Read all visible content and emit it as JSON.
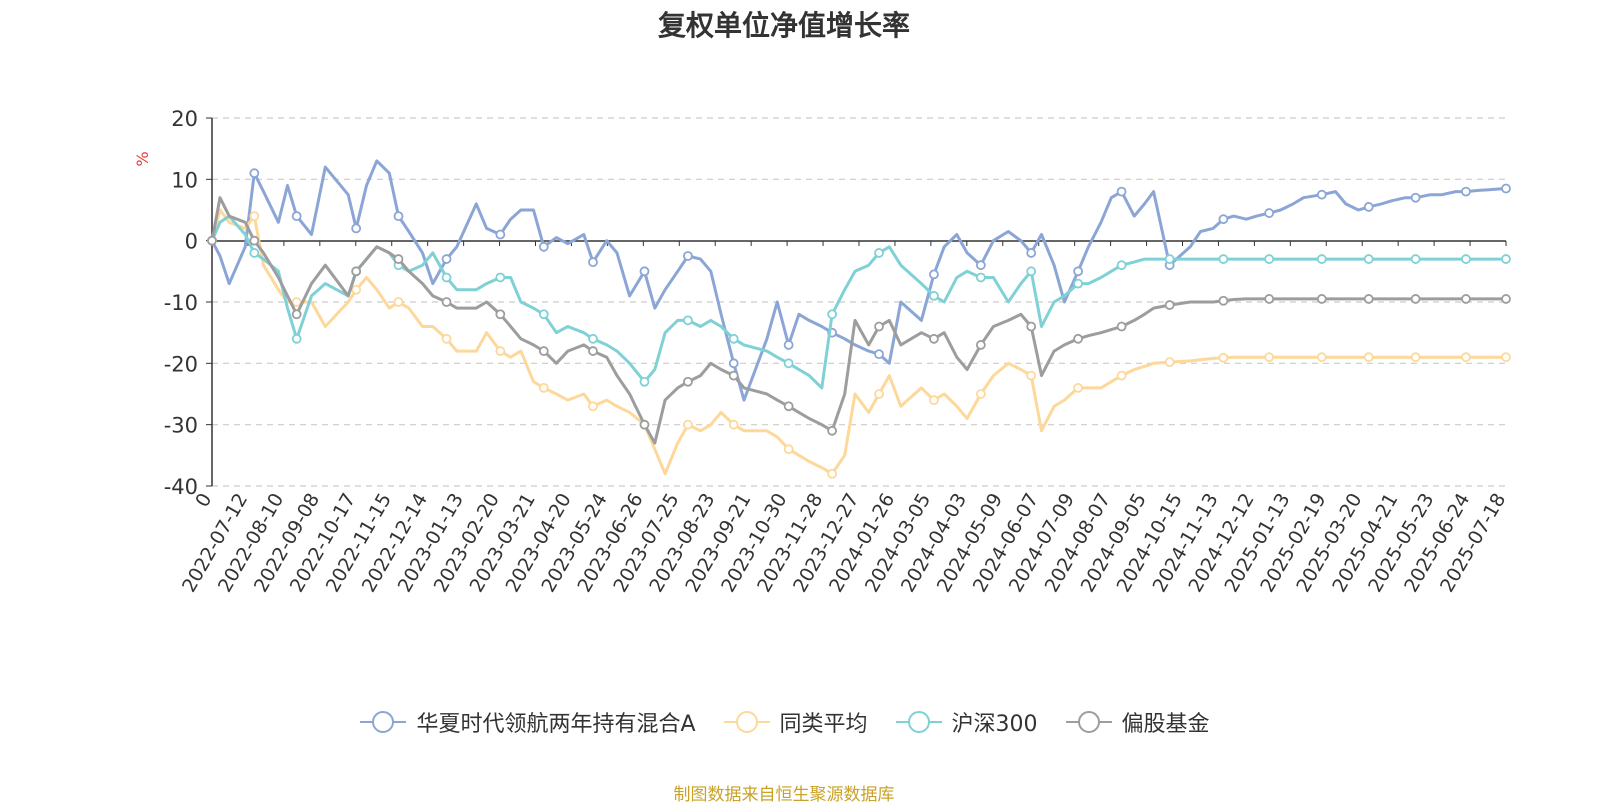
{
  "colors": {
    "fund": "#8ba6d6",
    "peer_avg": "#fdd89a",
    "hs300": "#7fd1d6",
    "equity_fund": "#9d9d9d",
    "axis": "#333333",
    "grid": "#cccccc",
    "unit": "#e83a3a",
    "source": "#c9a227"
  },
  "source_note": "制图数据来自恒生聚源数据库",
  "chart_data": {
    "type": "line",
    "title": "复权单位净值增长率",
    "ylabel": "%",
    "ylim": [
      -40,
      20
    ],
    "yticks": [
      20,
      10,
      0,
      -10,
      -20,
      -30,
      -40
    ],
    "grid": "horizontal dashed",
    "legend_position": "bottom-center",
    "x_tick_labels": [
      "0",
      "2022-07-12",
      "2022-08-10",
      "2022-09-08",
      "2022-10-17",
      "2022-11-15",
      "2022-12-14",
      "2023-01-13",
      "2023-02-20",
      "2023-03-21",
      "2023-04-20",
      "2023-05-24",
      "2023-06-26",
      "2023-07-25",
      "2023-08-23",
      "2023-09-21",
      "2023-10-30",
      "2023-11-28",
      "2023-12-27",
      "2024-01-26",
      "2024-03-05",
      "2024-04-03",
      "2024-05-09",
      "2024-06-07",
      "2024-07-09",
      "2024-08-07",
      "2024-09-05",
      "2024-10-15",
      "2024-11-13",
      "2024-12-12",
      "2025-01-13",
      "2025-02-19",
      "2025-03-20",
      "2025-04-21",
      "2025-05-23",
      "2025-06-24",
      "2025-07-18"
    ],
    "x": [
      "2022-06-13",
      "2022-06-20",
      "2022-06-28",
      "2022-07-12",
      "2022-07-20",
      "2022-07-28",
      "2022-08-10",
      "2022-08-18",
      "2022-08-26",
      "2022-09-08",
      "2022-09-20",
      "2022-10-10",
      "2022-10-17",
      "2022-10-26",
      "2022-11-04",
      "2022-11-15",
      "2022-11-23",
      "2022-12-02",
      "2022-12-14",
      "2022-12-23",
      "2023-01-04",
      "2023-01-13",
      "2023-01-30",
      "2023-02-08",
      "2023-02-20",
      "2023-03-01",
      "2023-03-10",
      "2023-03-21",
      "2023-03-30",
      "2023-04-10",
      "2023-04-20",
      "2023-05-04",
      "2023-05-12",
      "2023-05-24",
      "2023-06-02",
      "2023-06-13",
      "2023-06-26",
      "2023-07-05",
      "2023-07-14",
      "2023-07-25",
      "2023-08-03",
      "2023-08-14",
      "2023-08-23",
      "2023-09-01",
      "2023-09-12",
      "2023-09-21",
      "2023-10-11",
      "2023-10-20",
      "2023-10-30",
      "2023-11-08",
      "2023-11-17",
      "2023-11-28",
      "2023-12-07",
      "2023-12-18",
      "2023-12-27",
      "2024-01-08",
      "2024-01-17",
      "2024-01-26",
      "2024-02-05",
      "2024-02-23",
      "2024-03-05",
      "2024-03-14",
      "2024-03-25",
      "2024-04-03",
      "2024-04-15",
      "2024-04-26",
      "2024-05-09",
      "2024-05-20",
      "2024-05-29",
      "2024-06-07",
      "2024-06-18",
      "2024-06-27",
      "2024-07-09",
      "2024-07-18",
      "2024-07-29",
      "2024-08-07",
      "2024-08-16",
      "2024-08-27",
      "2024-09-05",
      "2024-09-13",
      "2024-09-27",
      "2024-10-15",
      "2024-10-24",
      "2024-11-04",
      "2024-11-13",
      "2024-11-22",
      "2024-12-03",
      "2024-12-12",
      "2024-12-23",
      "2025-01-02",
      "2025-01-13",
      "2025-01-22",
      "2025-02-07",
      "2025-02-19",
      "2025-02-28",
      "2025-03-11",
      "2025-03-20",
      "2025-03-31",
      "2025-04-09",
      "2025-04-21",
      "2025-04-30",
      "2025-05-13",
      "2025-05-23",
      "2025-06-04",
      "2025-06-13",
      "2025-06-24",
      "2025-07-03",
      "2025-07-10",
      "2025-07-18"
    ],
    "series": [
      {
        "name": "华夏时代领航两年持有混合A",
        "color_key": "fund",
        "values": [
          0,
          -2.5,
          -7,
          -1,
          11,
          8,
          3,
          9,
          4,
          1,
          12,
          7.5,
          2,
          9,
          13,
          11,
          4,
          1.5,
          -2,
          -7,
          -3,
          -1,
          6,
          2,
          1,
          3.5,
          5,
          5,
          -1,
          0.5,
          -0.5,
          1,
          -3.5,
          0,
          -2,
          -9,
          -5,
          -11,
          -8,
          -5,
          -2.5,
          -3,
          -5,
          -12,
          -20,
          -26,
          -16,
          -10,
          -17,
          -12,
          -13,
          -14,
          -15,
          -16,
          -17,
          -18,
          -18.5,
          -20,
          -10,
          -13,
          -5.5,
          -1,
          1,
          -2,
          -4,
          0,
          1.5,
          0,
          -2,
          1,
          -4,
          -10,
          -5,
          -1,
          3,
          7,
          8,
          4,
          6,
          8,
          -4,
          -1,
          1.5,
          2,
          3.5,
          4,
          3.5,
          4,
          4.5,
          5,
          6,
          7,
          7.5,
          8,
          6,
          5,
          5.5,
          6,
          6.5,
          7,
          7,
          7.5,
          7.5,
          8,
          8,
          8.2,
          8.3,
          8.4,
          8.5
        ]
      },
      {
        "name": "同类平均",
        "color_key": "peer_avg",
        "values": [
          0,
          5,
          3,
          2,
          4,
          -4,
          -8,
          -10,
          -10,
          -10,
          -14,
          -10,
          -8,
          -6,
          -8,
          -11,
          -10,
          -11,
          -14,
          -14,
          -16,
          -18,
          -18,
          -15,
          -18,
          -19,
          -18,
          -23,
          -24,
          -25,
          -26,
          -25,
          -27,
          -26,
          -27,
          -28,
          -30,
          -34,
          -38,
          -33,
          -30,
          -31,
          -30,
          -28,
          -30,
          -31,
          -31,
          -32,
          -34,
          -35,
          -36,
          -37,
          -38,
          -35,
          -25,
          -28,
          -25,
          -22,
          -27,
          -24,
          -26,
          -25,
          -27,
          -29,
          -25,
          -22,
          -20,
          -21,
          -22,
          -31,
          -27,
          -26,
          -24,
          -24,
          -24,
          -23,
          -22,
          -21,
          -20.5,
          -20,
          -19.8,
          -19.6,
          -19.4,
          -19.2,
          -19.1,
          -19,
          -19,
          -19,
          -19,
          -19,
          -19,
          -19,
          -19,
          -19,
          -19,
          -19,
          -19,
          -19,
          -19,
          -19,
          -19,
          -19,
          -19,
          -19,
          -19,
          -19,
          -19,
          -19,
          -19
        ]
      },
      {
        "name": "沪深300",
        "color_key": "hs300",
        "values": [
          0,
          3,
          4,
          1,
          -2,
          -3,
          -5,
          -11,
          -16,
          -9,
          -7,
          -9,
          -5,
          -3,
          -1,
          -2,
          -4,
          -5,
          -4,
          -2,
          -6,
          -8,
          -8,
          -7,
          -6,
          -6,
          -10,
          -11,
          -12,
          -15,
          -14,
          -15,
          -16,
          -17,
          -18,
          -20,
          -23,
          -21,
          -15,
          -13,
          -13,
          -14,
          -13,
          -14,
          -16,
          -17,
          -18,
          -19,
          -20,
          -21,
          -22,
          -24,
          -12,
          -8,
          -5,
          -4,
          -2,
          -1,
          -4,
          -7,
          -9,
          -10,
          -6,
          -5,
          -6,
          -6,
          -10,
          -7,
          -5,
          -14,
          -10,
          -9,
          -7,
          -7,
          -6,
          -5,
          -4,
          -3.5,
          -3,
          -3,
          -3,
          -3,
          -3,
          -3,
          -3,
          -3,
          -3,
          -3,
          -3,
          -3,
          -3,
          -3,
          -3,
          -3,
          -3,
          -3,
          -3,
          -3,
          -3,
          -3,
          -3,
          -3,
          -3,
          -3,
          -3,
          -3,
          -3,
          -3,
          -3
        ]
      },
      {
        "name": "偏股基金",
        "color_key": "equity_fund",
        "values": [
          0,
          7,
          4,
          3,
          0,
          -2,
          -6,
          -9,
          -12,
          -7,
          -4,
          -9,
          -5,
          -3,
          -1,
          -2,
          -3,
          -5,
          -7,
          -9,
          -10,
          -11,
          -11,
          -10,
          -12,
          -14,
          -16,
          -17,
          -18,
          -20,
          -18,
          -17,
          -18,
          -19,
          -22,
          -25,
          -30,
          -33,
          -26,
          -24,
          -23,
          -22,
          -20,
          -21,
          -22,
          -24,
          -25,
          -26,
          -27,
          -28,
          -29,
          -30,
          -31,
          -25,
          -13,
          -17,
          -14,
          -13,
          -17,
          -15,
          -16,
          -15,
          -19,
          -21,
          -17,
          -14,
          -13,
          -12,
          -14,
          -22,
          -18,
          -17,
          -16,
          -15.5,
          -15,
          -14.5,
          -14,
          -13,
          -12,
          -11,
          -10.5,
          -10,
          -10,
          -10,
          -9.8,
          -9.6,
          -9.5,
          -9.5,
          -9.5,
          -9.5,
          -9.5,
          -9.5,
          -9.5,
          -9.5,
          -9.5,
          -9.5,
          -9.5,
          -9.5,
          -9.5,
          -9.5,
          -9.5,
          -9.5,
          -9.5,
          -9.5,
          -9.5,
          -9.5,
          -9.5,
          -9.5,
          -9.5
        ]
      }
    ]
  }
}
